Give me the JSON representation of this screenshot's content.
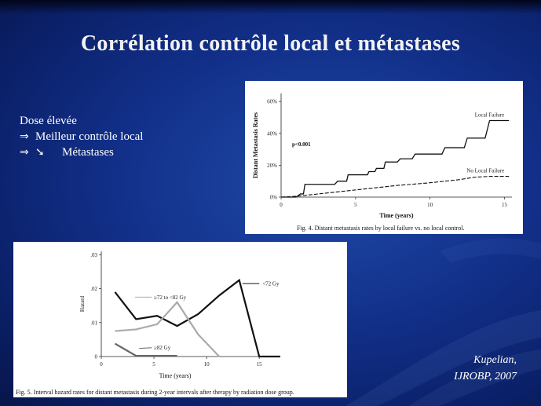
{
  "slide": {
    "title": "Corrélation contrôle local et métastases",
    "bullets": [
      {
        "prefix": "",
        "text": "Dose élevée"
      },
      {
        "prefix": "⇒",
        "text": "Meilleur contrôle local"
      },
      {
        "prefix": "⇒",
        "icon": "down-right-arrow-icon",
        "icon_glyph": "➘",
        "text": "Métastases"
      }
    ],
    "citation": {
      "author": "Kupelian,",
      "journal": "IJROBP, 2007"
    }
  },
  "chart_data": [
    {
      "type": "line",
      "caption": "Fig. 4.  Distant metastasis rates by local failure vs. no local control.",
      "xlabel": "Time (years)",
      "ylabel": "Distant Metastasis Rates",
      "xlim": [
        0,
        15.5
      ],
      "ylim": [
        0,
        65
      ],
      "x_ticks": [
        0,
        5,
        10,
        15
      ],
      "y_ticks": [
        {
          "value": 0,
          "label": "0%"
        },
        {
          "value": 20,
          "label": "20%"
        },
        {
          "value": 40,
          "label": "40%"
        },
        {
          "value": 60,
          "label": "60%"
        }
      ],
      "annotations": [
        {
          "text": "p<0.001"
        }
      ],
      "series": [
        {
          "name": "Local Failure",
          "style": "solid",
          "x": [
            0,
            1.0,
            1.3,
            1.5,
            1.6,
            3.6,
            3.8,
            4.4,
            4.5,
            5.8,
            5.9,
            6.3,
            6.4,
            6.9,
            7.0,
            7.8,
            8.0,
            8.8,
            9.0,
            10.8,
            11.0,
            12.3,
            12.5,
            13.7,
            14.0,
            15.3
          ],
          "y": [
            0,
            0,
            2,
            2,
            8,
            8,
            10,
            10,
            14,
            14,
            16,
            16,
            18,
            18,
            22,
            22,
            24,
            24,
            27,
            27,
            31,
            31,
            37,
            37,
            48,
            48
          ]
        },
        {
          "name": "No Local Failure",
          "style": "dashed",
          "x": [
            0,
            1,
            2,
            3,
            4,
            5,
            6,
            7,
            8,
            9,
            10,
            11,
            12,
            13,
            14,
            15.3
          ],
          "y": [
            0,
            0.5,
            1.5,
            2.5,
            3.5,
            4.5,
            5.5,
            6.5,
            7.5,
            8.2,
            9,
            10,
            11,
            12.5,
            13,
            13
          ]
        }
      ]
    },
    {
      "type": "line",
      "caption": "Fig. 5.  Interval hazard rates for distant metastasis during 2-year intervals after therapy by radiation dose group.",
      "xlabel": "Time (years)",
      "ylabel": "Hazard",
      "xlim": [
        0,
        17
      ],
      "ylim": [
        0,
        0.031
      ],
      "x_ticks": [
        0,
        5,
        10,
        15
      ],
      "y_ticks": [
        {
          "value": 0,
          "label": "0"
        },
        {
          "value": 0.01,
          "label": ".01"
        },
        {
          "value": 0.02,
          "label": ".02"
        },
        {
          "value": 0.03,
          "label": ".03"
        }
      ],
      "series": [
        {
          "name": "<72 Gy",
          "color": "#111111",
          "x": [
            1.3,
            3.3,
            5.3,
            7.2,
            9.2,
            11.2,
            13.1,
            15.0,
            17.0
          ],
          "y": [
            0.019,
            0.011,
            0.012,
            0.009,
            0.0125,
            0.018,
            0.0225,
            0.0,
            0.0
          ]
        },
        {
          "name": "≥72 to <82 Gy",
          "color": "#aaaaaa",
          "x": [
            1.3,
            3.3,
            5.3,
            7.2,
            9.2,
            11.2
          ],
          "y": [
            0.0075,
            0.008,
            0.0095,
            0.016,
            0.0065,
            0.0
          ]
        },
        {
          "name": "≥82 Gy",
          "color": "#666666",
          "x": [
            1.3,
            3.3,
            5.3,
            7.2
          ],
          "y": [
            0.0038,
            0.0002,
            0.0002,
            0.0002
          ]
        }
      ]
    }
  ]
}
